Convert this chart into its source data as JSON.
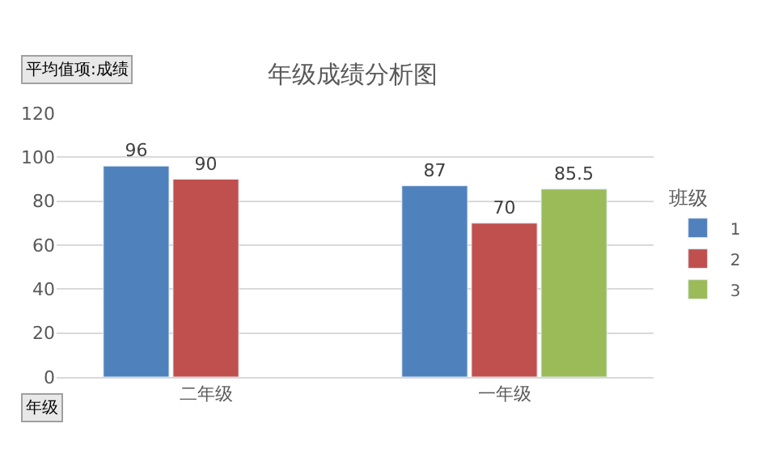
{
  "chart_data": {
    "type": "bar",
    "title": "年级成绩分析图",
    "categories": [
      "二年级",
      "一年级"
    ],
    "series": [
      {
        "name": "1",
        "color": "#4f81bd",
        "values": [
          96,
          87
        ]
      },
      {
        "name": "2",
        "color": "#c0504d",
        "values": [
          90,
          70
        ]
      },
      {
        "name": "3",
        "color": "#9bbb59",
        "values": [
          null,
          85.5
        ]
      }
    ],
    "ylim": [
      0,
      120
    ],
    "yticks": [
      0,
      20,
      40,
      60,
      80,
      100,
      120
    ],
    "grid": "y",
    "legend": "right",
    "legend_title": "班级",
    "data_labels": true,
    "annotations": [
      "平均值项:成绩",
      "年级"
    ]
  }
}
